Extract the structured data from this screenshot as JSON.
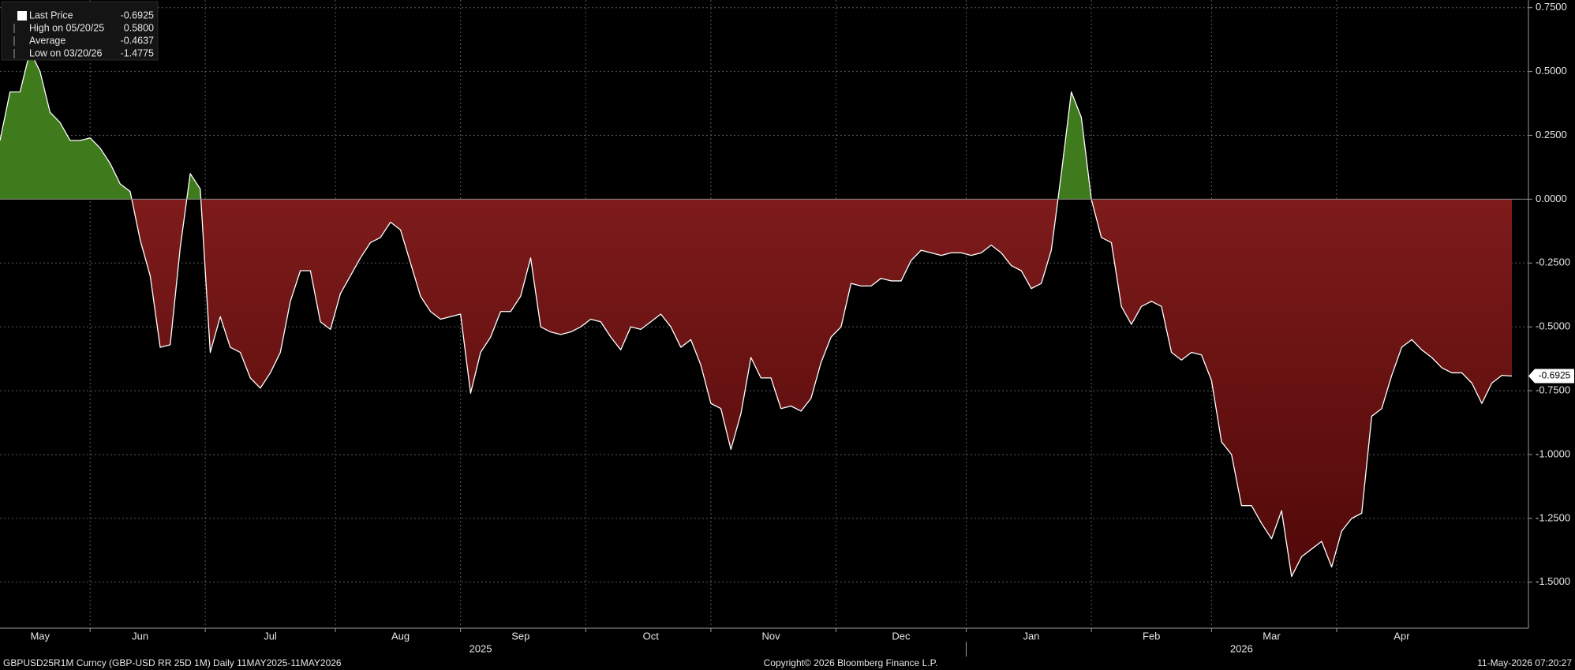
{
  "chart_data": {
    "type": "area",
    "footer_left": "GBPUSD25R1M Curncy (GBP-USD RR 25D 1M) Daily 11MAY2025-11MAY2026",
    "footer_center": "Copyright© 2026 Bloomberg Finance L.P.",
    "footer_right": "11-May-2026 07:20:27",
    "legend": [
      {
        "name": "Last Price",
        "value": {
          "value": -0.6925,
          "label": "-0.6925"
        }
      },
      {
        "name": "High on 05/20/25",
        "value": {
          "value": 0.58,
          "label": "0.5800"
        }
      },
      {
        "name": "Average",
        "value": {
          "value": -0.4637,
          "label": "-0.4637"
        }
      },
      {
        "name": "Low on 03/20/26",
        "value": {
          "value": -1.4775,
          "label": "-1.4775"
        }
      }
    ],
    "categories": [
      null,
      null,
      null,
      null,
      "May",
      null,
      null,
      null,
      null,
      null,
      null,
      null,
      null,
      null,
      "Jun",
      null,
      null,
      null,
      null,
      null,
      null,
      null,
      null,
      null,
      null,
      null,
      null,
      "Jul",
      null,
      null,
      null,
      null,
      null,
      null,
      null,
      null,
      null,
      null,
      null,
      null,
      "Aug",
      null,
      null,
      null,
      null,
      null,
      null,
      null,
      null,
      null,
      null,
      null,
      "Sep",
      null,
      null,
      null,
      null,
      null,
      null,
      null,
      null,
      null,
      null,
      null,
      null,
      "Oct",
      null,
      null,
      null,
      null,
      null,
      null,
      null,
      null,
      null,
      null,
      null,
      "Nov",
      null,
      null,
      null,
      null,
      null,
      null,
      null,
      null,
      null,
      null,
      null,
      null,
      "Dec",
      null,
      null,
      null,
      null,
      null,
      null,
      null,
      null,
      null,
      null,
      null,
      null,
      "Jan",
      null,
      null,
      null,
      null,
      null,
      null,
      null,
      null,
      null,
      null,
      null,
      "Feb",
      null,
      null,
      null,
      null,
      null,
      null,
      null,
      null,
      null,
      null,
      null,
      "Mar",
      null,
      null,
      null,
      null,
      null,
      null,
      null,
      null,
      null,
      null,
      null,
      null,
      "Apr",
      null,
      null,
      null,
      null,
      null,
      null,
      null,
      null,
      null,
      null,
      null
    ],
    "year_categories": [
      null,
      null,
      null,
      null,
      null,
      null,
      null,
      null,
      null,
      null,
      null,
      null,
      null,
      null,
      null,
      null,
      null,
      null,
      null,
      null,
      null,
      null,
      null,
      null,
      null,
      null,
      null,
      null,
      null,
      null,
      null,
      null,
      null,
      null,
      null,
      null,
      null,
      null,
      null,
      null,
      null,
      null,
      null,
      null,
      null,
      null,
      null,
      null,
      "2025",
      null,
      null,
      null,
      null,
      null,
      null,
      null,
      null,
      null,
      null,
      null,
      null,
      null,
      null,
      null,
      null,
      null,
      null,
      null,
      null,
      null,
      null,
      null,
      null,
      null,
      null,
      null,
      null,
      null,
      null,
      null,
      null,
      null,
      null,
      null,
      null,
      null,
      null,
      null,
      null,
      null,
      null,
      null,
      null,
      null,
      null,
      null,
      null,
      null,
      null,
      null,
      null,
      null,
      null,
      null,
      null,
      null,
      null,
      null,
      null,
      null,
      null,
      null,
      null,
      null,
      null,
      null,
      null,
      null,
      null,
      null,
      null,
      null,
      null,
      null,
      "2026",
      null,
      null,
      null,
      null,
      null,
      null,
      null,
      null,
      null,
      null,
      null,
      null,
      null,
      null,
      null,
      null,
      null,
      null,
      null,
      null,
      null,
      null,
      null,
      null,
      null,
      null
    ],
    "series": [
      {
        "name": "Last Price",
        "color": "#ffffff",
        "positive_color": "#3f7a1c",
        "negative_color": "#7e1b1b",
        "values": [
          0.23,
          0.42,
          0.42,
          0.58,
          0.5,
          0.34,
          0.3,
          0.23,
          0.23,
          0.24,
          0.2,
          0.14,
          0.06,
          0.03,
          -0.16,
          -0.3,
          -0.58,
          -0.57,
          -0.19,
          0.1,
          0.04,
          -0.6,
          -0.46,
          -0.58,
          -0.6,
          -0.7,
          -0.74,
          -0.68,
          -0.6,
          -0.4,
          -0.28,
          -0.28,
          -0.48,
          -0.51,
          -0.37,
          -0.3,
          -0.23,
          -0.17,
          -0.15,
          -0.09,
          -0.12,
          -0.25,
          -0.38,
          -0.44,
          -0.47,
          -0.46,
          -0.45,
          -0.76,
          -0.6,
          -0.54,
          -0.44,
          -0.44,
          -0.38,
          -0.23,
          -0.5,
          -0.52,
          -0.53,
          -0.52,
          -0.5,
          -0.47,
          -0.48,
          -0.54,
          -0.59,
          -0.5,
          -0.51,
          -0.48,
          -0.45,
          -0.5,
          -0.58,
          -0.55,
          -0.65,
          -0.8,
          -0.82,
          -0.98,
          -0.84,
          -0.62,
          -0.7,
          -0.7,
          -0.82,
          -0.81,
          -0.83,
          -0.78,
          -0.64,
          -0.54,
          -0.5,
          -0.33,
          -0.34,
          -0.34,
          -0.31,
          -0.32,
          -0.32,
          -0.24,
          -0.2,
          -0.21,
          -0.22,
          -0.21,
          -0.21,
          -0.22,
          -0.21,
          -0.18,
          -0.21,
          -0.26,
          -0.28,
          -0.35,
          -0.33,
          -0.2,
          0.1,
          0.42,
          0.32,
          0.0,
          -0.15,
          -0.17,
          -0.42,
          -0.49,
          -0.42,
          -0.4,
          -0.42,
          -0.6,
          -0.63,
          -0.6,
          -0.61,
          -0.71,
          -0.95,
          -1.0,
          -1.2,
          -1.2,
          -1.27,
          -1.33,
          -1.22,
          -1.4775,
          -1.4,
          -1.37,
          -1.34,
          -1.44,
          -1.3,
          -1.25,
          -1.23,
          -0.85,
          -0.82,
          -0.69,
          -0.58,
          -0.55,
          -0.59,
          -0.62,
          -0.66,
          -0.68,
          -0.68,
          -0.72,
          -0.8,
          -0.72,
          -0.69,
          -0.6925
        ]
      }
    ],
    "ylim": [
      -1.68,
      0.78
    ],
    "yticks": [
      {
        "value": 0.75,
        "label": "0.7500"
      },
      {
        "value": 0.5,
        "label": "0.5000"
      },
      {
        "value": 0.25,
        "label": "0.2500"
      },
      {
        "value": 0,
        "label": "0.0000"
      },
      {
        "value": -0.25,
        "label": "-0.2500"
      },
      {
        "value": -0.5,
        "label": "-0.5000"
      },
      {
        "value": -0.75,
        "label": "-0.7500"
      },
      {
        "value": -1,
        "label": "-1.0000"
      },
      {
        "value": -1.25,
        "label": "-1.2500"
      },
      {
        "value": -1.5,
        "label": "-1.5000"
      }
    ],
    "grid": true
  }
}
